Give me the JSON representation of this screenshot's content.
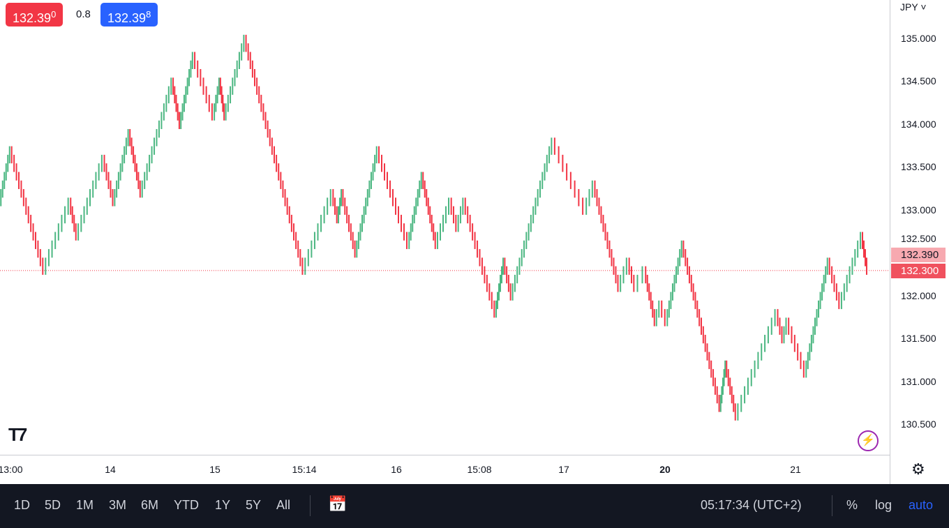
{
  "header": {
    "bid": "132.39",
    "bid_small": "0",
    "spread": "0.8",
    "ask": "132.39",
    "ask_small": "8"
  },
  "currency": "JPY",
  "price_labels": {
    "high": "132.390",
    "last": "132.300"
  },
  "y_ticks": [
    "135.000",
    "134.500",
    "134.000",
    "133.500",
    "133.000",
    "132.500",
    "132.000",
    "131.500",
    "131.000",
    "130.500"
  ],
  "x_ticks": [
    {
      "label": "13:00"
    },
    {
      "label": "14"
    },
    {
      "label": "15"
    },
    {
      "label": "15:14"
    },
    {
      "label": "16"
    },
    {
      "label": "15:08"
    },
    {
      "label": "17"
    },
    {
      "label": "20",
      "bold": true
    },
    {
      "label": "21"
    }
  ],
  "toolbar": {
    "ranges": [
      "1D",
      "5D",
      "1M",
      "3M",
      "6M",
      "YTD",
      "1Y",
      "5Y",
      "All"
    ],
    "time": "05:17:34 (UTC+2)",
    "percent": "%",
    "log": "log",
    "auto": "auto"
  },
  "colors": {
    "up": "#26a69a",
    "up_brick": "#4cb782",
    "down": "#f23645",
    "accent": "#2962ff"
  },
  "chart_data": {
    "type": "renko",
    "brick": 0.1,
    "ylim": [
      130.4,
      135.3
    ],
    "last_price": 132.3,
    "waypoints": [
      [
        0,
        133.1
      ],
      [
        15,
        133.7
      ],
      [
        63,
        132.3
      ],
      [
        100,
        133.1
      ],
      [
        110,
        132.7
      ],
      [
        148,
        133.6
      ],
      [
        163,
        133.1
      ],
      [
        185,
        133.9
      ],
      [
        202,
        133.2
      ],
      [
        247,
        134.5
      ],
      [
        258,
        134.0
      ],
      [
        277,
        134.8
      ],
      [
        306,
        134.1
      ],
      [
        315,
        134.5
      ],
      [
        322,
        134.1
      ],
      [
        351,
        135.0
      ],
      [
        435,
        132.3
      ],
      [
        476,
        133.2
      ],
      [
        484,
        132.9
      ],
      [
        490,
        133.2
      ],
      [
        510,
        132.5
      ],
      [
        541,
        133.7
      ],
      [
        585,
        132.6
      ],
      [
        605,
        133.4
      ],
      [
        625,
        132.6
      ],
      [
        645,
        133.1
      ],
      [
        655,
        132.8
      ],
      [
        665,
        133.1
      ],
      [
        710,
        131.8
      ],
      [
        722,
        132.4
      ],
      [
        733,
        132.0
      ],
      [
        792,
        133.8
      ],
      [
        838,
        133.0
      ],
      [
        851,
        133.3
      ],
      [
        887,
        132.1
      ],
      [
        900,
        132.4
      ],
      [
        910,
        132.1
      ],
      [
        924,
        132.3
      ],
      [
        939,
        131.7
      ],
      [
        946,
        131.9
      ],
      [
        955,
        131.7
      ],
      [
        978,
        132.6
      ],
      [
        1032,
        130.7
      ],
      [
        1040,
        131.2
      ],
      [
        1055,
        130.6
      ],
      [
        1113,
        131.8
      ],
      [
        1122,
        131.5
      ],
      [
        1128,
        131.7
      ],
      [
        1154,
        131.1
      ],
      [
        1187,
        132.4
      ],
      [
        1204,
        131.9
      ],
      [
        1235,
        132.7
      ],
      [
        1243,
        132.3
      ]
    ]
  }
}
